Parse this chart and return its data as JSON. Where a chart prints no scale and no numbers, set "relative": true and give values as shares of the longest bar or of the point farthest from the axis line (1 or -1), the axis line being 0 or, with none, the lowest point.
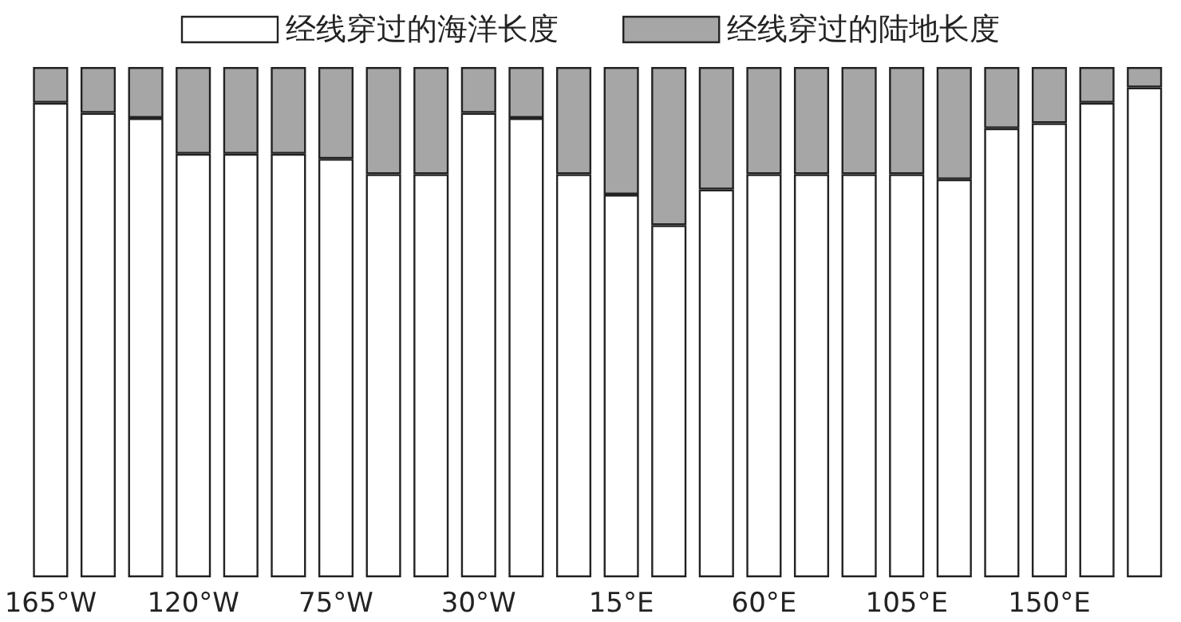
{
  "chart_data": {
    "type": "bar",
    "stacked": true,
    "relative": true,
    "legend": "top",
    "grid": false,
    "categories": [
      "165°W",
      null,
      null,
      "120°W",
      null,
      null,
      "75°W",
      null,
      null,
      "30°W",
      null,
      null,
      "15°E",
      null,
      null,
      "60°E",
      null,
      null,
      "105°E",
      null,
      null,
      "150°E",
      null,
      null
    ],
    "series": [
      {
        "name": "经线穿过的海洋长度",
        "color": "#ffffff",
        "values": [
          0.93,
          0.91,
          0.9,
          0.83,
          0.83,
          0.83,
          0.82,
          0.79,
          0.79,
          0.91,
          0.9,
          0.79,
          0.75,
          0.69,
          0.76,
          0.79,
          0.79,
          0.79,
          0.79,
          0.78,
          0.88,
          0.89,
          0.93,
          0.96
        ]
      },
      {
        "name": "经线穿过的陆地长度",
        "color": "#a6a6a6",
        "values": [
          0.07,
          0.09,
          0.1,
          0.17,
          0.17,
          0.17,
          0.18,
          0.21,
          0.21,
          0.09,
          0.1,
          0.21,
          0.25,
          0.31,
          0.24,
          0.21,
          0.21,
          0.21,
          0.21,
          0.22,
          0.12,
          0.11,
          0.07,
          0.04
        ]
      }
    ]
  }
}
